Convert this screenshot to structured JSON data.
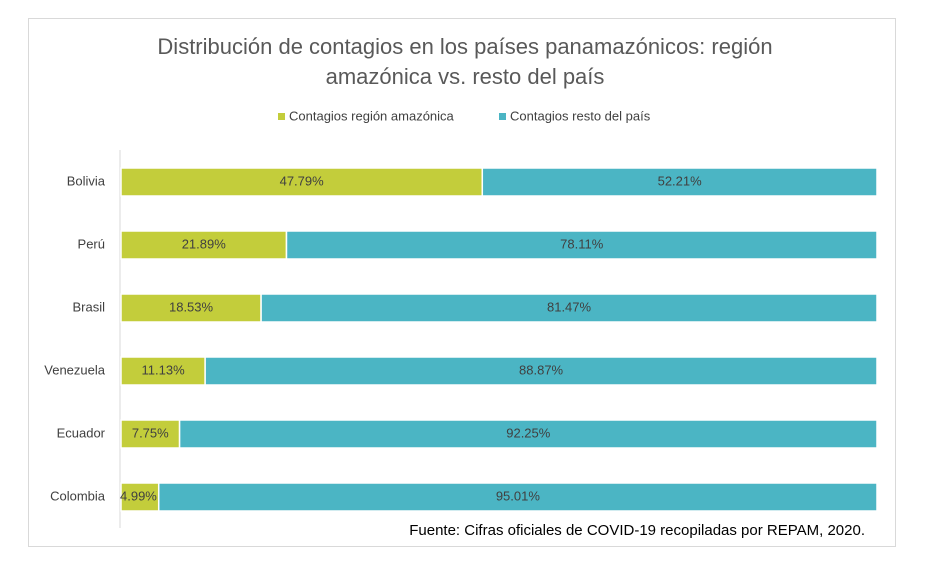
{
  "chart_data": {
    "type": "stacked-bar-horizontal",
    "title": "Distribución de contagios en los países panamazónicos: región amazónica vs. resto del país",
    "categories": [
      "Bolivia",
      "Perú",
      "Brasil",
      "Venezuela",
      "Ecuador",
      "Colombia"
    ],
    "series": [
      {
        "name": "Contagios región amazónica",
        "color": "#c3cd3b",
        "values": [
          47.79,
          21.89,
          18.53,
          11.13,
          7.75,
          4.99
        ],
        "value_labels": [
          "47.79%",
          "21.89%",
          "18.53%",
          "11.13%",
          "7.75%",
          "4.99%"
        ]
      },
      {
        "name": "Contagios resto del país",
        "color": "#4bb5c4",
        "values": [
          52.21,
          78.11,
          81.47,
          88.87,
          92.25,
          95.01
        ],
        "value_labels": [
          "52.21%",
          "78.11%",
          "81.47%",
          "88.87%",
          "92.25%",
          "95.01%"
        ]
      }
    ],
    "xlim": [
      0,
      100
    ],
    "legend": "top",
    "source": "Fuente: Cifras oficiales de COVID-19 recopiladas por REPAM, 2020."
  }
}
